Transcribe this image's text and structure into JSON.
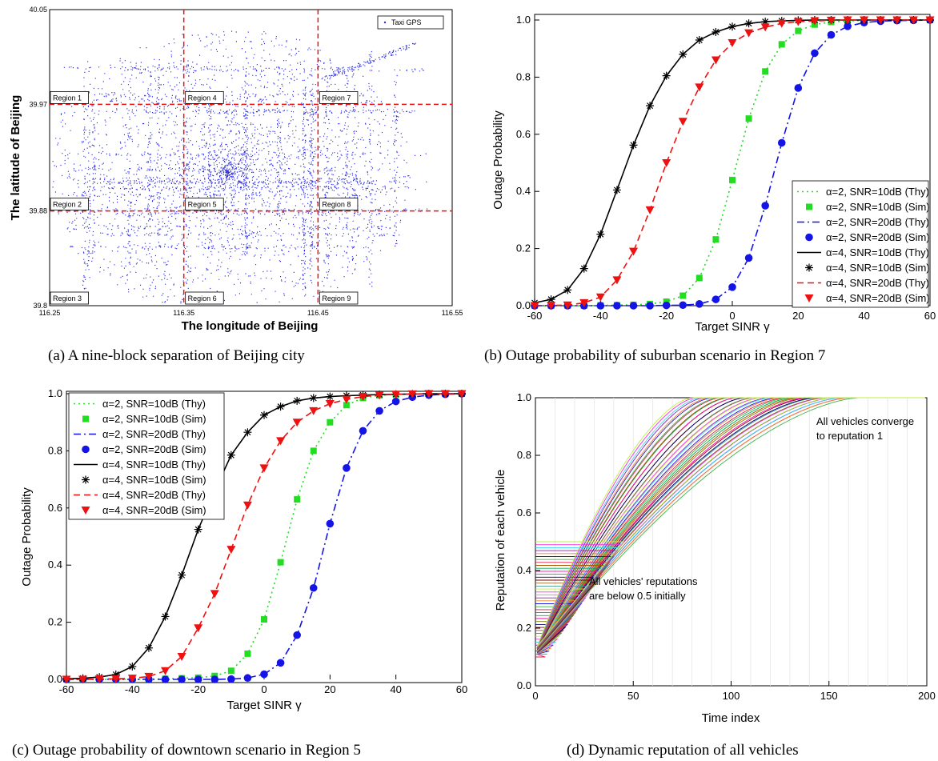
{
  "captions": {
    "a": "(a) A nine-block separation of Beijing city",
    "b": "(b) Outage probability of suburban scenario in Region 7",
    "c": "(c) Outage probability of downtown scenario in Region 5",
    "d": "(d) Dynamic reputation of all vehicles"
  },
  "colors": {
    "green": "#22dd22",
    "blue": "#1414e6",
    "black": "#000000",
    "red": "#ee1111",
    "map_dots": "#2a2ae6"
  },
  "chart_data": [
    {
      "id": "a",
      "type": "scatter",
      "xlabel": "The longitude of Beijing",
      "ylabel": "The latitude of Beijing",
      "xlim": [
        116.25,
        116.55
      ],
      "ylim": [
        39.8,
        40.05
      ],
      "x_ticks": [
        "116.25",
        "116.35",
        "116.45",
        "116.55"
      ],
      "y_ticks": [
        "39.8",
        "39.88",
        "39.97",
        "40.05"
      ],
      "legend": "Taxi GPS",
      "legend_position": "top-right",
      "divider_lon": [
        116.35,
        116.45
      ],
      "divider_lat": [
        39.88,
        39.97
      ],
      "regions": [
        "Region 1",
        "Region 2",
        "Region 3",
        "Region 4",
        "Region 5",
        "Region 6",
        "Region 7",
        "Region 8",
        "Region 9"
      ]
    },
    {
      "id": "b",
      "type": "line",
      "xlabel": "Target SINR γ",
      "ylabel": "Outage Probability",
      "xlim": [
        -60,
        60
      ],
      "ylim": [
        0,
        1
      ],
      "x_ticks": [
        "-60",
        "-40",
        "-20",
        "0",
        "20",
        "40",
        "60"
      ],
      "y_ticks": [
        "0.0",
        "0.2",
        "0.4",
        "0.6",
        "0.8",
        "1.0"
      ],
      "legend_position": "center-right",
      "x": [
        -60,
        -55,
        -50,
        -45,
        -40,
        -35,
        -30,
        -25,
        -20,
        -15,
        -10,
        -5,
        0,
        5,
        10,
        15,
        20,
        25,
        30,
        35,
        40,
        45,
        50,
        55,
        60
      ],
      "series": [
        {
          "name": "α=2, SNR=10dB (Thy)",
          "style": "dotted",
          "color": "#22dd22",
          "values": [
            0,
            0,
            0,
            0,
            0.001,
            0.002,
            0.003,
            0.006,
            0.014,
            0.035,
            0.097,
            0.232,
            0.44,
            0.655,
            0.82,
            0.915,
            0.962,
            0.984,
            0.993,
            0.997,
            0.999,
            1,
            1,
            1,
            1
          ]
        },
        {
          "name": "α=2, SNR=10dB (Sim)",
          "marker": "square",
          "color": "#22dd22",
          "values": [
            0,
            0,
            0,
            0,
            0.001,
            0.002,
            0.003,
            0.006,
            0.014,
            0.035,
            0.097,
            0.232,
            0.44,
            0.655,
            0.82,
            0.915,
            0.962,
            0.984,
            0.993,
            0.997,
            0.999,
            1,
            1,
            1,
            1
          ]
        },
        {
          "name": "α=2, SNR=20dB (Thy)",
          "style": "dashdot",
          "color": "#1414e6",
          "values": [
            0,
            0,
            0,
            0,
            0,
            0,
            0,
            0,
            0.001,
            0.002,
            0.006,
            0.022,
            0.065,
            0.167,
            0.35,
            0.57,
            0.762,
            0.884,
            0.948,
            0.978,
            0.991,
            0.996,
            0.998,
            0.999,
            1
          ]
        },
        {
          "name": "α=2, SNR=20dB (Sim)",
          "marker": "circle",
          "color": "#1414e6",
          "values": [
            0,
            0,
            0,
            0,
            0,
            0,
            0,
            0,
            0.001,
            0.002,
            0.006,
            0.022,
            0.065,
            0.167,
            0.35,
            0.57,
            0.762,
            0.884,
            0.948,
            0.978,
            0.991,
            0.996,
            0.998,
            0.999,
            1
          ]
        },
        {
          "name": "α=4, SNR=10dB (Thy)",
          "style": "solid",
          "color": "#000000",
          "values": [
            0.01,
            0.022,
            0.055,
            0.13,
            0.25,
            0.405,
            0.562,
            0.7,
            0.805,
            0.88,
            0.93,
            0.958,
            0.977,
            0.988,
            0.994,
            0.997,
            0.999,
            1,
            1,
            1,
            1,
            1,
            1,
            1,
            1
          ]
        },
        {
          "name": "α=4, SNR=10dB (Sim)",
          "marker": "star",
          "color": "#000000",
          "values": [
            0.01,
            0.022,
            0.055,
            0.13,
            0.25,
            0.405,
            0.562,
            0.7,
            0.805,
            0.88,
            0.93,
            0.958,
            0.977,
            0.988,
            0.994,
            0.997,
            0.999,
            1,
            1,
            1,
            1,
            1,
            1,
            1,
            1
          ]
        },
        {
          "name": "α=4, SNR=20dB (Thy)",
          "style": "dashed",
          "color": "#ee1111",
          "values": [
            0,
            0.001,
            0.002,
            0.01,
            0.03,
            0.09,
            0.19,
            0.335,
            0.5,
            0.645,
            0.765,
            0.86,
            0.92,
            0.955,
            0.975,
            0.988,
            0.994,
            0.997,
            0.999,
            1,
            1,
            1,
            1,
            1,
            1
          ]
        },
        {
          "name": "α=4, SNR=20dB (Sim)",
          "marker": "triangle-down",
          "color": "#ee1111",
          "values": [
            0,
            0.001,
            0.002,
            0.01,
            0.03,
            0.09,
            0.19,
            0.335,
            0.5,
            0.645,
            0.765,
            0.86,
            0.92,
            0.955,
            0.975,
            0.988,
            0.994,
            0.997,
            0.999,
            1,
            1,
            1,
            1,
            1,
            1
          ]
        }
      ]
    },
    {
      "id": "c",
      "type": "line",
      "xlabel": "Target SINR γ",
      "ylabel": "Outage Probability",
      "xlim": [
        -60,
        60
      ],
      "ylim": [
        0,
        1
      ],
      "x_ticks": [
        "-60",
        "-40",
        "-20",
        "0",
        "20",
        "40",
        "60"
      ],
      "y_ticks": [
        "0.0",
        "0.2",
        "0.4",
        "0.6",
        "0.8",
        "1.0"
      ],
      "legend_position": "top-left",
      "x": [
        -60,
        -55,
        -50,
        -45,
        -40,
        -35,
        -30,
        -25,
        -20,
        -15,
        -10,
        -5,
        0,
        5,
        10,
        15,
        20,
        25,
        30,
        35,
        40,
        45,
        50,
        55,
        60
      ],
      "series": [
        {
          "name": "α=2, SNR=10dB (Thy)",
          "style": "dotted",
          "color": "#22dd22",
          "values": [
            0,
            0,
            0,
            0,
            0,
            0.001,
            0.002,
            0.004,
            0.006,
            0.012,
            0.03,
            0.09,
            0.21,
            0.41,
            0.63,
            0.8,
            0.9,
            0.96,
            0.985,
            0.994,
            0.998,
            0.999,
            1,
            1,
            1
          ]
        },
        {
          "name": "α=2, SNR=10dB (Sim)",
          "marker": "square",
          "color": "#22dd22",
          "values": [
            0,
            0,
            0,
            0,
            0,
            0.001,
            0.002,
            0.004,
            0.006,
            0.012,
            0.03,
            0.09,
            0.21,
            0.41,
            0.63,
            0.8,
            0.9,
            0.96,
            0.985,
            0.994,
            0.998,
            0.999,
            1,
            1,
            1
          ]
        },
        {
          "name": "α=2, SNR=20dB (Thy)",
          "style": "dashdot",
          "color": "#1414e6",
          "values": [
            0,
            0,
            0,
            0,
            0,
            0,
            0,
            0,
            0,
            0,
            0.001,
            0.005,
            0.018,
            0.058,
            0.155,
            0.32,
            0.545,
            0.74,
            0.87,
            0.94,
            0.973,
            0.988,
            0.995,
            0.998,
            1
          ]
        },
        {
          "name": "α=2, SNR=20dB (Sim)",
          "marker": "circle",
          "color": "#1414e6",
          "values": [
            0,
            0,
            0,
            0,
            0,
            0,
            0,
            0,
            0,
            0,
            0.001,
            0.005,
            0.018,
            0.058,
            0.155,
            0.32,
            0.545,
            0.74,
            0.87,
            0.94,
            0.973,
            0.988,
            0.995,
            0.998,
            1
          ]
        },
        {
          "name": "α=4, SNR=10dB (Thy)",
          "style": "solid",
          "color": "#000000",
          "values": [
            0.002,
            0.004,
            0.008,
            0.017,
            0.045,
            0.11,
            0.22,
            0.365,
            0.525,
            0.66,
            0.785,
            0.865,
            0.925,
            0.955,
            0.975,
            0.985,
            0.99,
            0.993,
            0.995,
            0.997,
            0.998,
            0.999,
            1,
            1,
            1
          ]
        },
        {
          "name": "α=4, SNR=10dB (Sim)",
          "marker": "star",
          "color": "#000000",
          "values": [
            0.002,
            0.004,
            0.008,
            0.017,
            0.045,
            0.11,
            0.22,
            0.365,
            0.525,
            0.66,
            0.785,
            0.865,
            0.925,
            0.955,
            0.975,
            0.985,
            0.99,
            0.993,
            0.995,
            0.997,
            0.998,
            0.999,
            1,
            1,
            1
          ]
        },
        {
          "name": "α=4, SNR=20dB (Thy)",
          "style": "dashed",
          "color": "#ee1111",
          "values": [
            0,
            0,
            0.001,
            0.002,
            0.004,
            0.01,
            0.03,
            0.08,
            0.18,
            0.3,
            0.455,
            0.61,
            0.74,
            0.835,
            0.9,
            0.94,
            0.965,
            0.98,
            0.99,
            0.995,
            0.998,
            0.999,
            1,
            1,
            1
          ]
        },
        {
          "name": "α=4, SNR=20dB (Sim)",
          "marker": "triangle-down",
          "color": "#ee1111",
          "values": [
            0,
            0,
            0.001,
            0.002,
            0.004,
            0.01,
            0.03,
            0.08,
            0.18,
            0.3,
            0.455,
            0.61,
            0.74,
            0.835,
            0.9,
            0.94,
            0.965,
            0.98,
            0.99,
            0.995,
            0.998,
            0.999,
            1,
            1,
            1
          ]
        }
      ]
    },
    {
      "id": "d",
      "type": "line",
      "xlabel": "Time index",
      "ylabel": "Reputation of each vehicle",
      "xlim": [
        0,
        200
      ],
      "ylim": [
        0,
        1
      ],
      "x_ticks": [
        "0",
        "50",
        "100",
        "150",
        "200"
      ],
      "y_ticks": [
        "0.0",
        "0.2",
        "0.4",
        "0.6",
        "0.8",
        "1.0"
      ],
      "grid": true,
      "series_count": 40,
      "initial_reputation_range": [
        0.1,
        0.5
      ],
      "converge_time_range": [
        80,
        168
      ],
      "annotations": [
        {
          "lines": [
            "All vehicles converge",
            "to reputation 1"
          ]
        },
        {
          "lines": [
            "All vehicles' reputations",
            "are below 0.5 initially"
          ]
        }
      ]
    }
  ]
}
